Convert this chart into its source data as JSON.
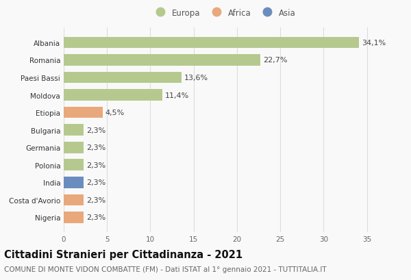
{
  "categories": [
    "Albania",
    "Romania",
    "Paesi Bassi",
    "Moldova",
    "Etiopia",
    "Bulgaria",
    "Germania",
    "Polonia",
    "India",
    "Costa d'Avorio",
    "Nigeria"
  ],
  "values": [
    34.1,
    22.7,
    13.6,
    11.4,
    4.5,
    2.3,
    2.3,
    2.3,
    2.3,
    2.3,
    2.3
  ],
  "labels": [
    "34,1%",
    "22,7%",
    "13,6%",
    "11,4%",
    "4,5%",
    "2,3%",
    "2,3%",
    "2,3%",
    "2,3%",
    "2,3%",
    "2,3%"
  ],
  "continents": [
    "Europa",
    "Europa",
    "Europa",
    "Europa",
    "Africa",
    "Europa",
    "Europa",
    "Europa",
    "Asia",
    "Africa",
    "Africa"
  ],
  "colors": {
    "Europa": "#b5c98e",
    "Africa": "#e8a87c",
    "Asia": "#6b8cbf"
  },
  "legend_order": [
    "Europa",
    "Africa",
    "Asia"
  ],
  "title": "Cittadini Stranieri per Cittadinanza - 2021",
  "subtitle": "COMUNE DI MONTE VIDON COMBATTE (FM) - Dati ISTAT al 1° gennaio 2021 - TUTTITALIA.IT",
  "xlim": [
    0,
    37
  ],
  "xticks": [
    0,
    5,
    10,
    15,
    20,
    25,
    30,
    35
  ],
  "bg_color": "#f9f9f9",
  "grid_color": "#dddddd",
  "bar_height": 0.65,
  "title_fontsize": 10.5,
  "subtitle_fontsize": 7.5,
  "label_fontsize": 8,
  "tick_fontsize": 7.5,
  "legend_fontsize": 8.5,
  "ytick_fontsize": 7.5
}
